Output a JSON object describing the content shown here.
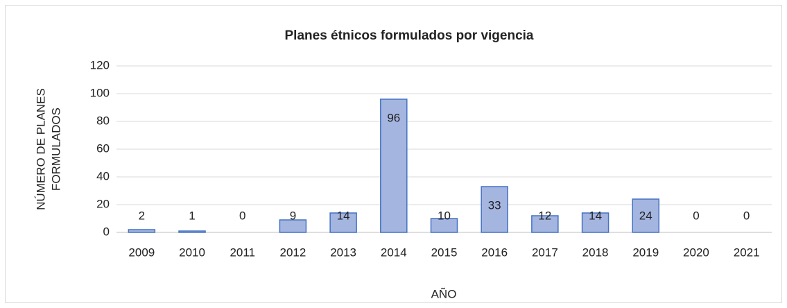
{
  "chart_data": {
    "type": "bar",
    "title": "Planes étnicos formulados por vigencia",
    "x_label": "AÑO",
    "y_label": [
      "NÚMERO DE PLANES",
      "FORMULADOS"
    ],
    "categories": [
      "2009",
      "2010",
      "2011",
      "2012",
      "2013",
      "2014",
      "2015",
      "2016",
      "2017",
      "2018",
      "2019",
      "2020",
      "2021"
    ],
    "values": [
      2,
      1,
      0,
      9,
      14,
      96,
      10,
      33,
      12,
      14,
      24,
      0,
      0
    ],
    "color": "#a4b5e0",
    "edge_color": "#4472c4",
    "ylim": [
      0,
      120
    ],
    "yticks": [
      0,
      20,
      40,
      60,
      80,
      100,
      120
    ],
    "grid": true
  }
}
